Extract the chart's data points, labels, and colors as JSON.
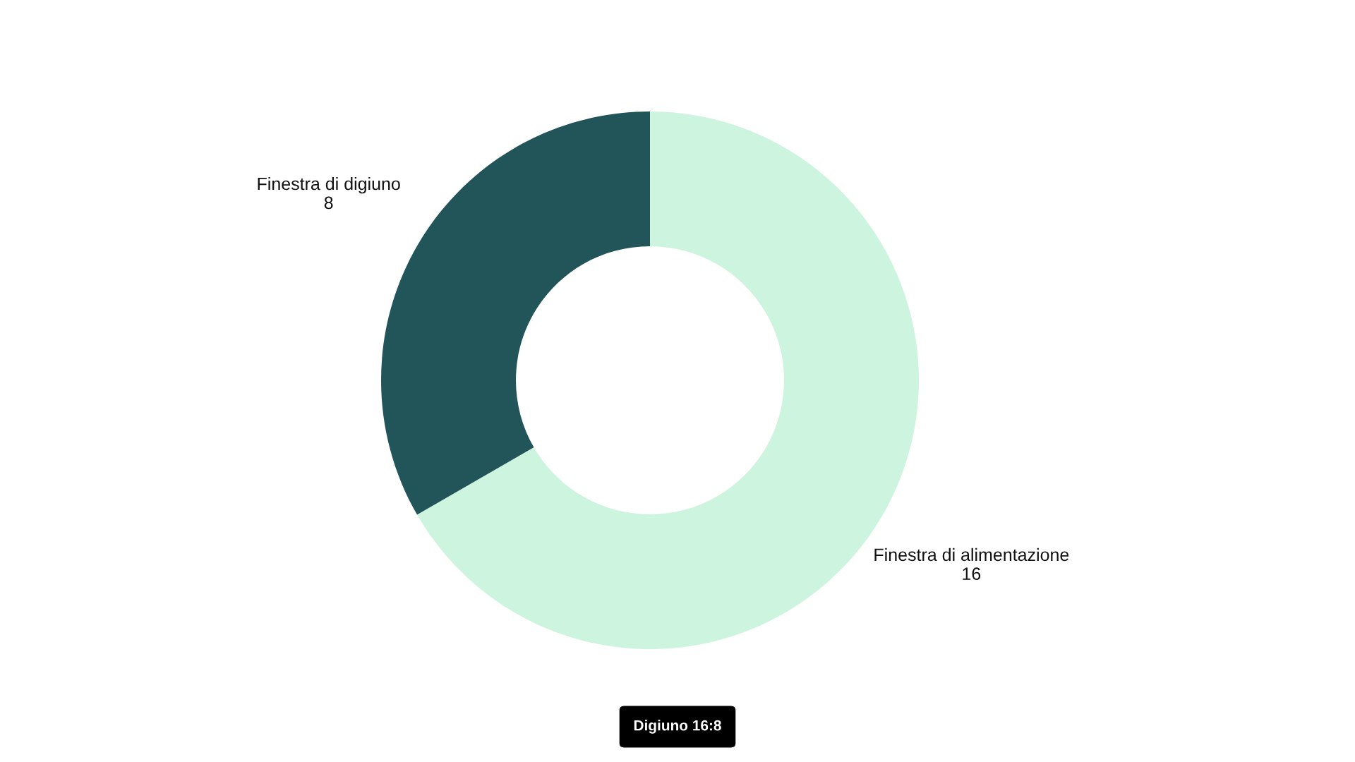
{
  "chart_data": {
    "type": "donut",
    "title": "Digiuno 16:8",
    "categories": [
      "Finestra di alimentazione",
      "Finestra di digiuno"
    ],
    "values": [
      16,
      8
    ],
    "colors": [
      "#ccf4de",
      "#22555a"
    ],
    "data_labels": true
  }
}
